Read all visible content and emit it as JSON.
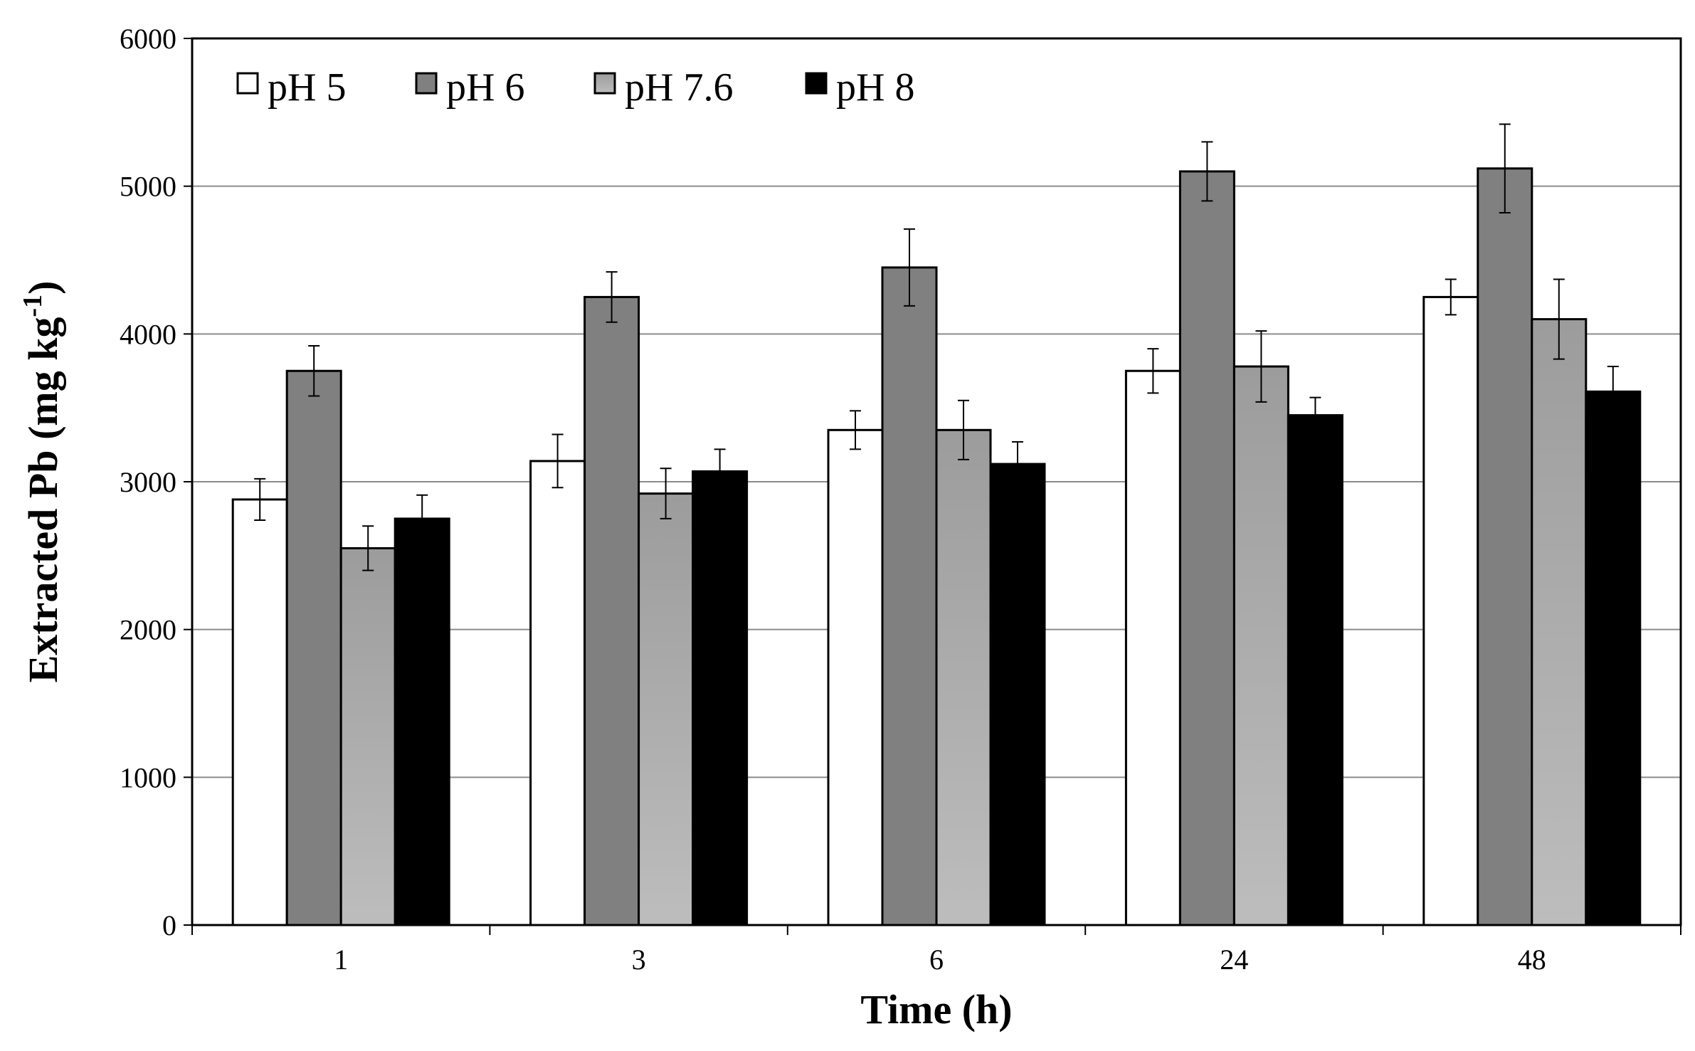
{
  "chart_data": {
    "type": "bar",
    "title": "",
    "xlabel": "Time (h)",
    "ylabel": "Extracted Pb (mg kg",
    "ylabel_superscript": "-1",
    "ylabel_close": ")",
    "categories": [
      "1",
      "3",
      "6",
      "24",
      "48"
    ],
    "ylim": [
      0,
      6000
    ],
    "yticks": [
      0,
      1000,
      2000,
      3000,
      4000,
      5000,
      6000
    ],
    "ytick_labels": [
      "0",
      "1000",
      "2000",
      "3000",
      "4000",
      "5000",
      "6000"
    ],
    "grid": true,
    "legend_position": "top-left",
    "series": [
      {
        "name": "pH 5",
        "color": "#ffffff",
        "values": [
          2880,
          3140,
          3350,
          3750,
          4250
        ],
        "errors": [
          140,
          180,
          130,
          150,
          120
        ]
      },
      {
        "name": "pH 6",
        "color": "#808080",
        "values": [
          3750,
          4250,
          4450,
          5100,
          5120
        ],
        "errors": [
          170,
          170,
          260,
          200,
          300
        ]
      },
      {
        "name": "pH 7.6",
        "color": "#a6a6a6",
        "values": [
          2550,
          2920,
          3350,
          3780,
          4100
        ],
        "errors": [
          150,
          170,
          200,
          240,
          270
        ]
      },
      {
        "name": "pH 8",
        "color": "#000000",
        "values": [
          2750,
          3070,
          3120,
          3450,
          3610
        ],
        "errors": [
          160,
          150,
          150,
          120,
          170
        ]
      }
    ]
  }
}
